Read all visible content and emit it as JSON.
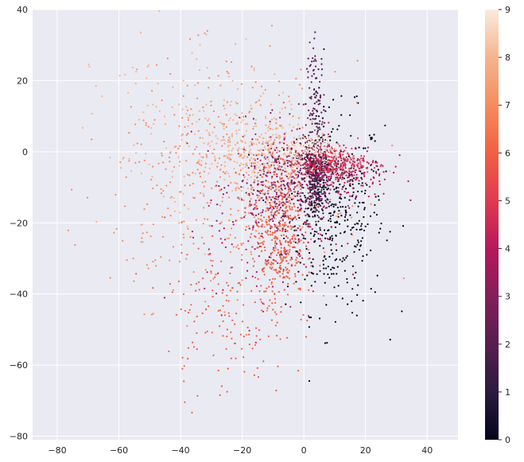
{
  "chart_data": {
    "type": "scatter",
    "title": "",
    "xlabel": "",
    "ylabel": "",
    "xlim": [
      -88,
      50
    ],
    "ylim": [
      -81,
      40
    ],
    "xticks": [
      -80,
      -60,
      -40,
      -20,
      0,
      20,
      40
    ],
    "yticks": [
      -80,
      -60,
      -40,
      -20,
      0,
      20,
      40
    ],
    "grid": true,
    "background": "#eaeaf2",
    "colorbar": {
      "min": 0,
      "max": 9,
      "ticks": [
        0,
        1,
        2,
        3,
        4,
        5,
        6,
        7,
        8,
        9
      ],
      "colormap": "rocket",
      "stops": [
        "#03051a",
        "#2b1b3f",
        "#571e4f",
        "#841e5a",
        "#b5195a",
        "#df3a50",
        "#f06043",
        "#f58c5f",
        "#f6b48e",
        "#faebdd"
      ]
    },
    "series": [
      {
        "label_value": 0,
        "center": [
          10,
          -17
        ],
        "spread": [
          8,
          14
        ],
        "count": 420
      },
      {
        "label_value": 1,
        "center": [
          4,
          -8
        ],
        "spread": [
          2,
          6
        ],
        "count": 320
      },
      {
        "label_value": 2,
        "center": [
          3,
          -2
        ],
        "spread": [
          2,
          3
        ],
        "count": 280
      },
      {
        "label_value": 2,
        "center": [
          4,
          12
        ],
        "spread": [
          1.5,
          9
        ],
        "count": 120
      },
      {
        "label_value": 3,
        "center": [
          -7,
          -10
        ],
        "spread": [
          8,
          8
        ],
        "count": 380
      },
      {
        "label_value": 4,
        "center": [
          -12,
          -20
        ],
        "spread": [
          10,
          14
        ],
        "count": 160
      },
      {
        "label_value": 4,
        "center": [
          12,
          -5
        ],
        "spread": [
          8,
          4
        ],
        "count": 260
      },
      {
        "label_value": 5,
        "center": [
          8,
          -3
        ],
        "spread": [
          6,
          2.5
        ],
        "count": 240
      },
      {
        "label_value": 6,
        "center": [
          -8,
          -22
        ],
        "spread": [
          4,
          10
        ],
        "count": 380
      },
      {
        "label_value": 6,
        "center": [
          -25,
          -45
        ],
        "spread": [
          10,
          12
        ],
        "count": 160
      },
      {
        "label_value": 7,
        "center": [
          -25,
          -8
        ],
        "spread": [
          18,
          16
        ],
        "count": 420
      },
      {
        "label_value": 8,
        "center": [
          -15,
          0
        ],
        "spread": [
          10,
          6
        ],
        "count": 320
      },
      {
        "label_value": 8,
        "center": [
          -40,
          5
        ],
        "spread": [
          14,
          14
        ],
        "count": 120
      },
      {
        "label_value": 9,
        "center": [
          4,
          1
        ],
        "spread": [
          4,
          1.5
        ],
        "count": 200
      }
    ]
  }
}
